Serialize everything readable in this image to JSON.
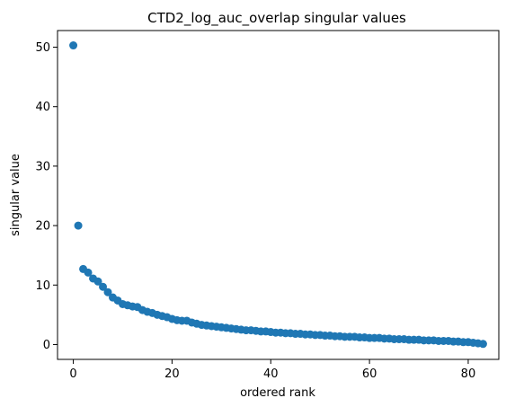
{
  "chart_data": {
    "type": "scatter",
    "title": "CTD2_log_auc_overlap singular values",
    "xlabel": "ordered rank",
    "ylabel": "singular value",
    "xlim": [
      -3.2,
      86.2
    ],
    "ylim": [
      -2.5,
      52.8
    ],
    "xticks": [
      0,
      20,
      40,
      60,
      80
    ],
    "yticks": [
      0,
      10,
      20,
      30,
      40,
      50
    ],
    "grid": false,
    "marker_color": "#1f77b4",
    "series": [
      {
        "values": [
          50.3,
          20.0,
          12.7,
          12.1,
          11.1,
          10.6,
          9.7,
          8.8,
          7.9,
          7.4,
          6.8,
          6.6,
          6.4,
          6.3,
          5.8,
          5.5,
          5.3,
          5.0,
          4.8,
          4.6,
          4.3,
          4.1,
          4.0,
          4.0,
          3.7,
          3.5,
          3.3,
          3.2,
          3.1,
          3.0,
          2.9,
          2.8,
          2.7,
          2.6,
          2.5,
          2.4,
          2.4,
          2.3,
          2.2,
          2.2,
          2.1,
          2.0,
          2.0,
          1.9,
          1.9,
          1.8,
          1.8,
          1.7,
          1.7,
          1.6,
          1.6,
          1.5,
          1.5,
          1.4,
          1.4,
          1.3,
          1.3,
          1.3,
          1.2,
          1.2,
          1.1,
          1.1,
          1.1,
          1.0,
          1.0,
          0.9,
          0.9,
          0.9,
          0.8,
          0.8,
          0.8,
          0.7,
          0.7,
          0.7,
          0.6,
          0.6,
          0.6,
          0.5,
          0.5,
          0.4,
          0.4,
          0.3,
          0.2,
          0.1
        ]
      }
    ]
  }
}
